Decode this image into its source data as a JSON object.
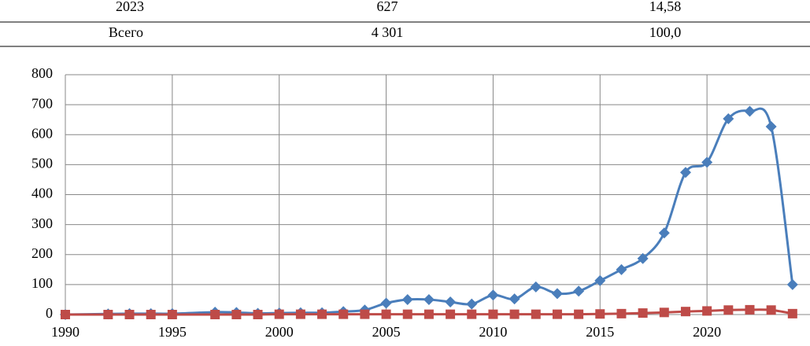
{
  "table": {
    "rows": [
      [
        "2023",
        "627",
        "14,58"
      ],
      [
        "Всего",
        "4 301",
        "100,0"
      ]
    ]
  },
  "chart_data": {
    "type": "line",
    "x": [
      1990,
      1992,
      1993,
      1994,
      1995,
      1997,
      1998,
      1999,
      2000,
      2001,
      2002,
      2003,
      2004,
      2005,
      2006,
      2007,
      2008,
      2009,
      2010,
      2011,
      2012,
      2013,
      2014,
      2015,
      2016,
      2017,
      2018,
      2019,
      2020,
      2021,
      2022,
      2023,
      2024
    ],
    "series": [
      {
        "color": "#4a7ebb",
        "marker": "diamond",
        "values": [
          0,
          2,
          3,
          3,
          3,
          8,
          7,
          4,
          5,
          6,
          6,
          10,
          15,
          38,
          50,
          50,
          42,
          35,
          65,
          52,
          92,
          70,
          78,
          113,
          150,
          187,
          272,
          474,
          508,
          653,
          678,
          627,
          100
        ]
      },
      {
        "color": "#be4b48",
        "marker": "square",
        "values": [
          0,
          0,
          0,
          0,
          0,
          0,
          0,
          0,
          1,
          1,
          1,
          1,
          1,
          1,
          1,
          1,
          1,
          1,
          1,
          1,
          1,
          1,
          1,
          2,
          3,
          5,
          7,
          10,
          12,
          15,
          16,
          15,
          3
        ]
      }
    ],
    "xlim": [
      1990,
      2025
    ],
    "xticks": [
      1990,
      1995,
      2000,
      2005,
      2010,
      2015,
      2020
    ],
    "ylim": [
      0,
      800
    ],
    "yticks": [
      0,
      100,
      200,
      300,
      400,
      500,
      600,
      700,
      800
    ],
    "grid": true
  }
}
